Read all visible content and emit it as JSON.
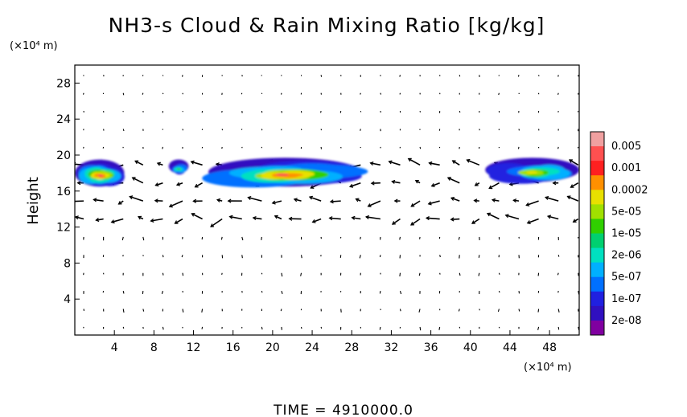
{
  "chart_data": {
    "type": "heatmap",
    "title": "NH3-s Cloud & Rain Mixing Ratio [kg/kg]",
    "x_unit": "(×10⁴ m)",
    "y_unit": "(×10⁴ m)",
    "ylabel": "Height",
    "footer": "TIME = 4910000.0",
    "xlim": [
      0,
      51
    ],
    "ylim": [
      0,
      30
    ],
    "x_ticks": [
      4,
      8,
      12,
      16,
      20,
      24,
      28,
      32,
      36,
      40,
      44,
      48
    ],
    "y_ticks": [
      4,
      8,
      12,
      16,
      20,
      24,
      28
    ],
    "colorbar": {
      "labels": [
        "0.005",
        "0.001",
        "0.0002",
        "5e-05",
        "1e-05",
        "2e-06",
        "5e-07",
        "1e-07",
        "2e-08"
      ],
      "colors": [
        "#f0a0a0",
        "#ff5050",
        "#ff2020",
        "#ff9000",
        "#e8e000",
        "#a0e000",
        "#30d000",
        "#00d070",
        "#00e0c0",
        "#00b0ff",
        "#0070ff",
        "#2020e0",
        "#3010c0",
        "#8000a0"
      ]
    },
    "cloud_regions": [
      {
        "x_range": [
          0,
          5
        ],
        "y_range": [
          16.5,
          19.5
        ],
        "peak": "0.0002"
      },
      {
        "x_range": [
          9.5,
          11.5
        ],
        "y_range": [
          18,
          19.5
        ],
        "peak": "1e-05"
      },
      {
        "x_range": [
          13.5,
          29
        ],
        "y_range": [
          16.5,
          19.7
        ],
        "peak": "0.0002"
      },
      {
        "x_range": [
          41.5,
          51
        ],
        "y_range": [
          17,
          19.7
        ],
        "peak": "5e-05"
      }
    ]
  }
}
